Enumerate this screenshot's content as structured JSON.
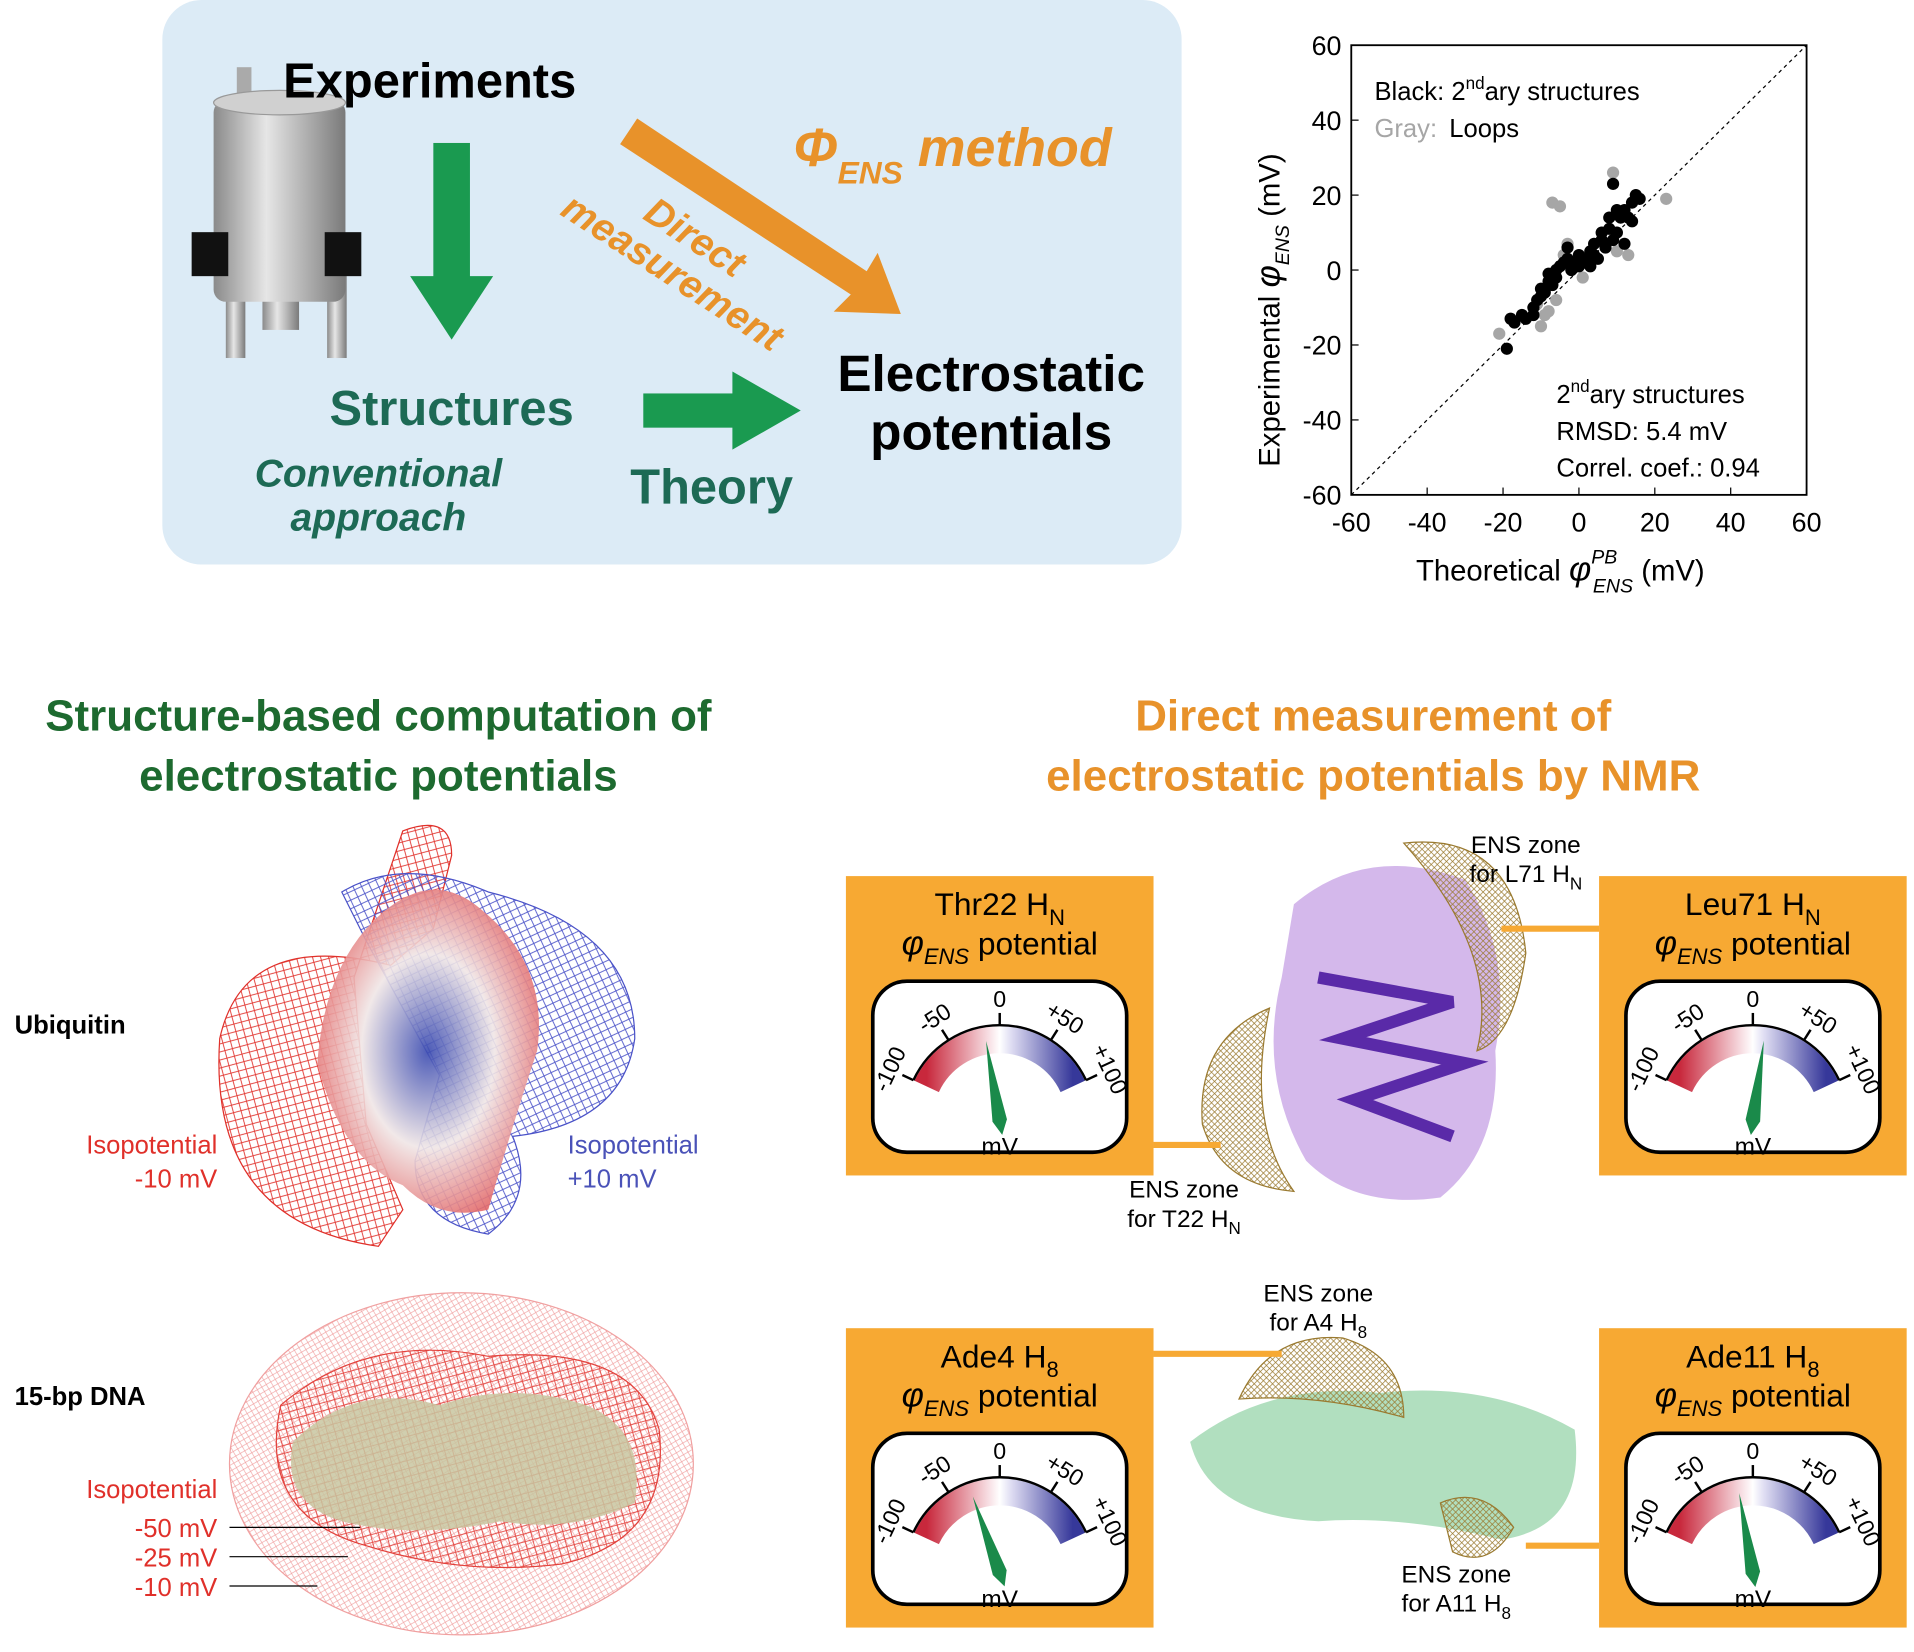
{
  "chart_data": {
    "type": "scatter",
    "annotations": {
      "black": [
        "Black: 2",
        "nd",
        "ary structures"
      ],
      "gray": [
        "Gray:",
        "Loops"
      ],
      "stats": [
        "2",
        "nd",
        "ary structures"
      ],
      "rmsd": "RMSD: 5.4 mV",
      "correl": "Correl. coef.: 0.94"
    },
    "x_label": [
      "Theoretical ",
      "φ",
      "PB",
      "ENS",
      " (mV)"
    ],
    "y_label": [
      "Experimental ",
      "φ",
      "ENS",
      " (mV)"
    ],
    "xlim": [
      -60,
      60
    ],
    "ylim": [
      -60,
      60
    ],
    "xticks": [
      -60,
      -40,
      -20,
      0,
      20,
      40,
      60
    ],
    "yticks": [
      -60,
      -40,
      -20,
      0,
      20,
      40,
      60
    ],
    "diagonal": true,
    "series": [
      {
        "color": "#a6a6a6",
        "x": [
          -21,
          -11,
          -10,
          -9,
          -8,
          -7,
          -5,
          -6,
          -3,
          1,
          9,
          10,
          13,
          23,
          -4,
          -9
        ],
        "values": [
          -17,
          -9,
          -15,
          -12,
          -11,
          18,
          17,
          -8,
          7,
          -2,
          26,
          5,
          4,
          19,
          4,
          -5
        ]
      },
      {
        "color": "#000000",
        "x": [
          -19,
          -18,
          -17,
          -15,
          -14,
          -12,
          -11,
          -10,
          -10,
          -9,
          -8,
          -8,
          -7,
          -6,
          -6,
          -5,
          -4,
          -3,
          -2,
          -1,
          0,
          0,
          1,
          2,
          3,
          3,
          4,
          5,
          6,
          6,
          7,
          8,
          8,
          9,
          9,
          10,
          10,
          11,
          12,
          12,
          13,
          14,
          14,
          15,
          16,
          -3,
          4,
          -12
        ],
        "values": [
          -21,
          -13,
          -14,
          -12,
          -13,
          -10,
          -8,
          -5,
          -7,
          -6,
          -3,
          -1,
          -4,
          -2,
          0,
          1,
          2,
          3,
          0,
          2,
          4,
          1,
          3,
          2,
          5,
          1,
          4,
          3,
          8,
          10,
          6,
          11,
          14,
          8,
          23,
          10,
          16,
          14,
          7,
          16,
          14,
          18,
          13,
          20,
          19,
          6,
          7,
          -12
        ]
      }
    ]
  },
  "overview": {
    "experiments": "Experiments",
    "structures": "Structures",
    "conventional": [
      "Conventional",
      "approach"
    ],
    "theory": "Theory",
    "potentials": [
      "Electrostatic",
      "potentials"
    ],
    "method": [
      "Φ",
      "ENS",
      " method"
    ],
    "direct": [
      "Direct",
      "measurement"
    ]
  },
  "left": {
    "title": [
      "Structure-based computation of",
      "electrostatic potentials"
    ],
    "ubiquitin": "Ubiquitin",
    "neg": [
      "Isopotential",
      "-10 mV"
    ],
    "pos": [
      "Isopotential",
      "+10 mV"
    ],
    "dna": "15-bp DNA",
    "dna_label": "Isopotential",
    "levels": [
      "-50 mV",
      "-25 mV",
      "-10 mV"
    ]
  },
  "right": {
    "title": [
      "Direct measurement of",
      "electrostatic potentials by NMR"
    ],
    "gauge": {
      "lim": [
        -100,
        100
      ],
      "ticks": [
        -100,
        -50,
        0,
        {
          "value": 50,
          "label": "+50"
        },
        {
          "value": 100,
          "label": "+100"
        }
      ],
      "unit": "mV"
    },
    "panels": [
      {
        "name": [
          "Thr22 H",
          "N"
        ],
        "potential": [
          "φ",
          "ENS",
          " potential"
        ],
        "value": -15
      },
      {
        "name": [
          "Leu71 H",
          "N"
        ],
        "potential": [
          "φ",
          "ENS",
          " potential"
        ],
        "value": 12
      },
      {
        "name": [
          "Ade4 H",
          "8"
        ],
        "potential": [
          "φ",
          "ENS",
          " potential"
        ],
        "value": -30
      },
      {
        "name": [
          "Ade11 H",
          "8"
        ],
        "potential": [
          "φ",
          "ENS",
          " potential"
        ],
        "value": -15
      }
    ],
    "zones": [
      {
        "lines": [
          "ENS zone",
          "for L71 H",
          "N"
        ]
      },
      {
        "lines": [
          "ENS zone",
          "for T22 H",
          "N"
        ]
      },
      {
        "lines": [
          "ENS zone",
          "for A4 H",
          "8"
        ]
      },
      {
        "lines": [
          "ENS zone",
          "for A11 H",
          "8"
        ]
      }
    ]
  }
}
